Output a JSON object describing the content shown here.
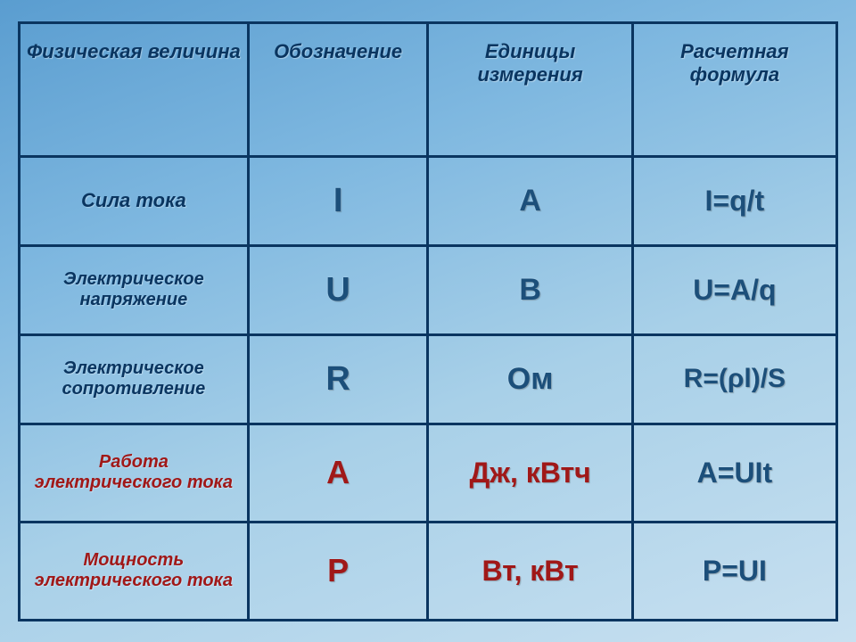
{
  "table": {
    "header_color": "#0a3560",
    "header_fontsize": 22,
    "border_color": "#0a3560",
    "columns": [
      "Физическая величина",
      "Обозначение",
      "Единицы измерения",
      "Расчетная формула"
    ],
    "rows": [
      {
        "height": 100,
        "label": "Сила тока",
        "label_color": "#0a3560",
        "label_fontsize": 22,
        "symbol": "I",
        "unit": "А",
        "formula": "I=q/t",
        "value_color": "#1c4f7a",
        "value_fontsize": 38,
        "formula_fontsize": 32
      },
      {
        "height": 100,
        "label": "Электрическое напряжение",
        "label_color": "#0a3560",
        "label_fontsize": 20,
        "symbol": "U",
        "unit": "В",
        "formula": "U=A/q",
        "value_color": "#1c4f7a",
        "value_fontsize": 38,
        "formula_fontsize": 32
      },
      {
        "height": 100,
        "label": "Электрическое сопротивление",
        "label_color": "#0a3560",
        "label_fontsize": 20,
        "symbol": "R",
        "unit": "Ом",
        "formula": "R=(ρl)/S",
        "value_color": "#1c4f7a",
        "value_fontsize": 38,
        "formula_fontsize": 30
      },
      {
        "height": 110,
        "label": "Работа электрического тока",
        "label_color": "#a01818",
        "label_fontsize": 20,
        "symbol": "A",
        "unit": "Дж, кВтч",
        "formula": "A=UIt",
        "value_color": "#a01818",
        "value_fontsize": 36,
        "formula_fontsize": 32,
        "formula_color": "#1c4f7a"
      },
      {
        "height": 110,
        "label": "Мощность электрического тока",
        "label_color": "#a01818",
        "label_fontsize": 20,
        "symbol": "P",
        "unit": "Вт, кВт",
        "formula": "P=UI",
        "value_color": "#a01818",
        "value_fontsize": 36,
        "formula_fontsize": 32,
        "formula_color": "#1c4f7a"
      }
    ]
  }
}
